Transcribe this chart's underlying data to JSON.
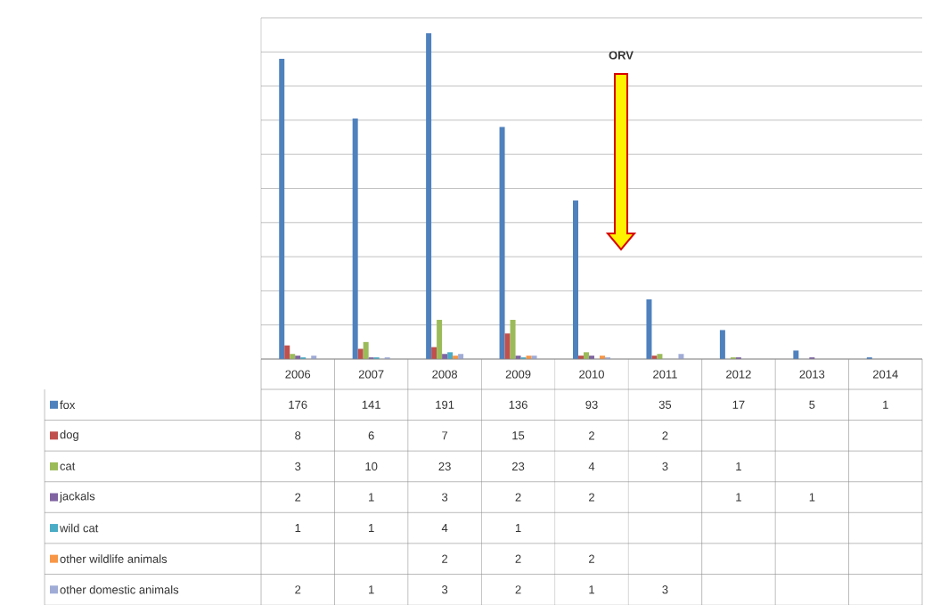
{
  "chart_data": {
    "type": "bar",
    "categories": [
      "2006",
      "2007",
      "2008",
      "2009",
      "2010",
      "2011",
      "2012",
      "2013",
      "2014"
    ],
    "series": [
      {
        "name": "fox",
        "color": "#4f81bd",
        "values": [
          176,
          141,
          191,
          136,
          93,
          35,
          17,
          5,
          1
        ]
      },
      {
        "name": "dog",
        "color": "#c0504d",
        "values": [
          8,
          6,
          7,
          15,
          2,
          2,
          null,
          null,
          null
        ]
      },
      {
        "name": "cat",
        "color": "#9bbb59",
        "values": [
          3,
          10,
          23,
          23,
          4,
          3,
          1,
          null,
          null
        ]
      },
      {
        "name": "jackals",
        "color": "#8064a2",
        "values": [
          2,
          1,
          3,
          2,
          2,
          null,
          1,
          1,
          null
        ]
      },
      {
        "name": "wild cat",
        "color": "#4bacc6",
        "values": [
          1,
          1,
          4,
          1,
          null,
          null,
          null,
          null,
          null
        ]
      },
      {
        "name": "other wildlife animals",
        "color": "#f79646",
        "values": [
          null,
          null,
          2,
          2,
          2,
          null,
          null,
          null,
          null
        ]
      },
      {
        "name": "other domestic animals",
        "color": "#a0acd6",
        "values": [
          2,
          1,
          3,
          2,
          1,
          3,
          null,
          null,
          null
        ]
      }
    ],
    "ylim": [
      0,
      200
    ],
    "yticks": [
      {
        "value": 0,
        "label": null
      },
      {
        "value": 20,
        "label": null
      },
      {
        "value": 40,
        "label": null
      },
      {
        "value": 60,
        "label": null
      },
      {
        "value": 80,
        "label": null
      },
      {
        "value": 100,
        "label": null
      },
      {
        "value": 120,
        "label": null
      },
      {
        "value": 140,
        "label": null
      },
      {
        "value": 160,
        "label": null
      },
      {
        "value": 180,
        "label": null
      },
      {
        "value": 200,
        "label": null
      }
    ],
    "grid": "y",
    "legend": "bottom left",
    "data_labels": true,
    "annotations": [
      "ORV"
    ]
  }
}
